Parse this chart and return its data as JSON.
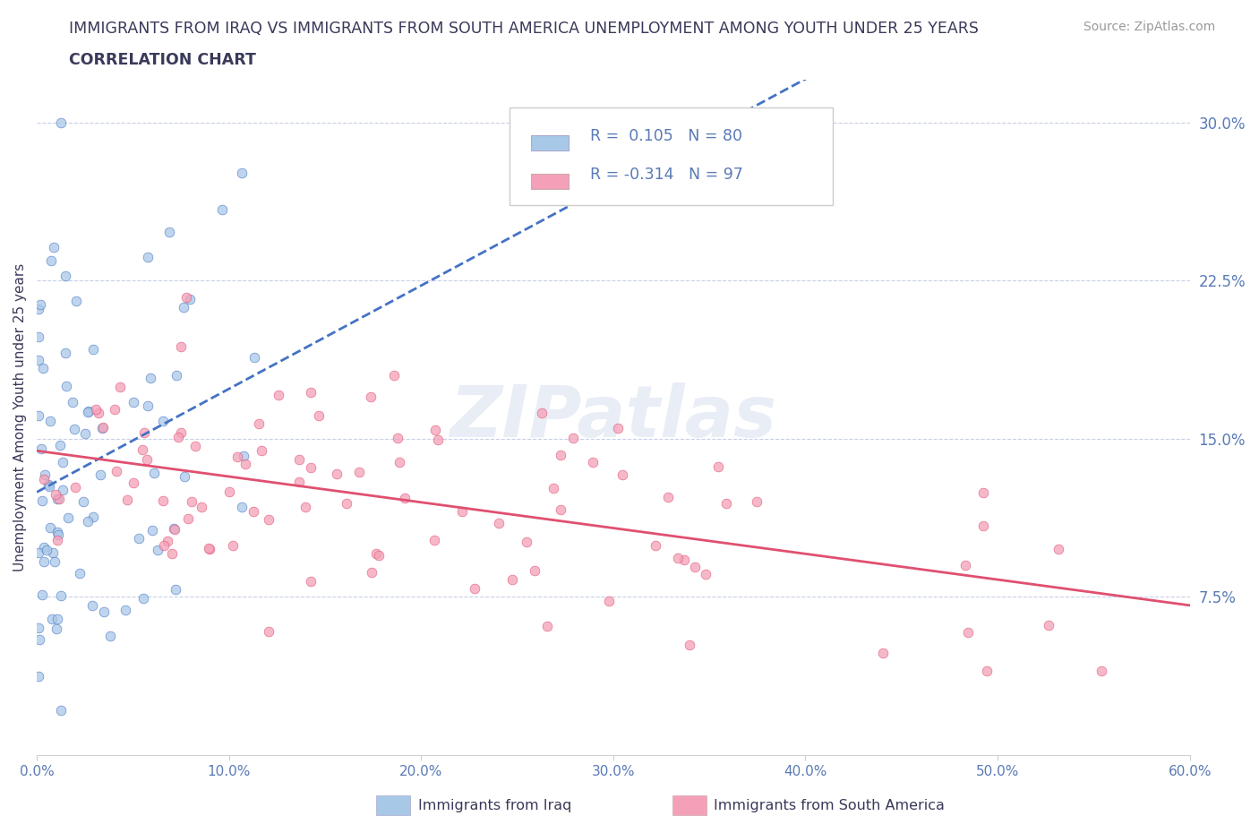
{
  "title_line1": "IMMIGRANTS FROM IRAQ VS IMMIGRANTS FROM SOUTH AMERICA UNEMPLOYMENT AMONG YOUTH UNDER 25 YEARS",
  "title_line2": "CORRELATION CHART",
  "source_text": "Source: ZipAtlas.com",
  "ylabel": "Unemployment Among Youth under 25 years",
  "xlim": [
    0.0,
    0.6
  ],
  "ylim": [
    0.0,
    0.32
  ],
  "xticks": [
    0.0,
    0.1,
    0.2,
    0.3,
    0.4,
    0.5,
    0.6
  ],
  "xticklabels": [
    "0.0%",
    "10.0%",
    "20.0%",
    "30.0%",
    "40.0%",
    "50.0%",
    "60.0%"
  ],
  "yticks": [
    0.075,
    0.15,
    0.225,
    0.3
  ],
  "yticklabels": [
    "7.5%",
    "15.0%",
    "22.5%",
    "30.0%"
  ],
  "iraq_color": "#a8c8e8",
  "iraq_color_trend": "#4472c4",
  "southam_color": "#f4a0b8",
  "southam_color_trend": "#e05070",
  "iraq_R": 0.105,
  "iraq_N": 80,
  "southam_R": -0.314,
  "southam_N": 97,
  "legend_label_iraq": "Immigrants from Iraq",
  "legend_label_southam": "Immigrants from South America",
  "watermark_text": "ZIPatlas",
  "title_color": "#3a3a5a",
  "axis_color": "#5a7ab5",
  "grid_color": "#c8d0e8"
}
